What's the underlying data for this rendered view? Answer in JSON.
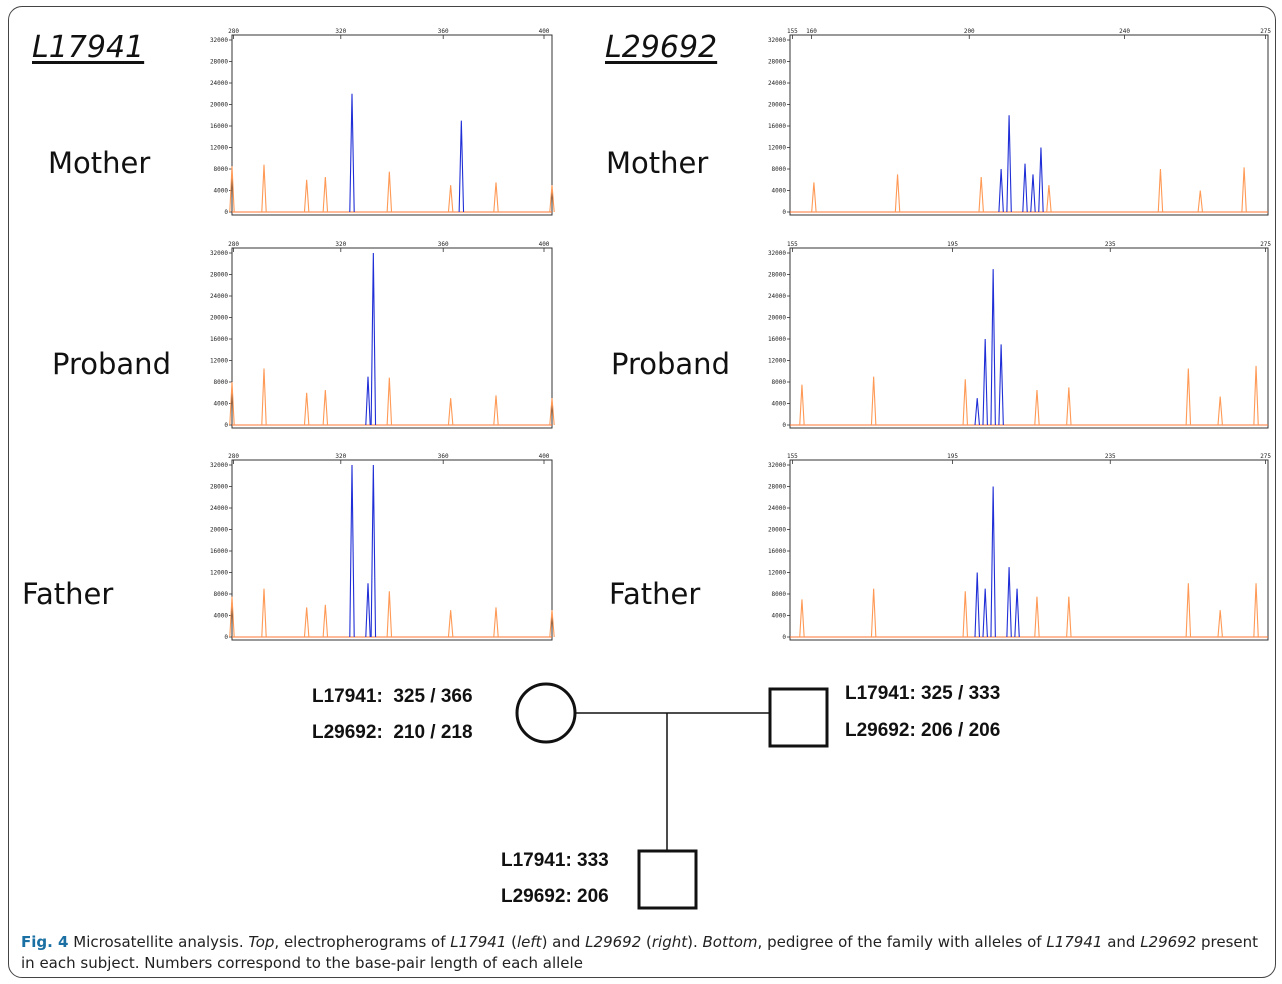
{
  "figure": {
    "caption_label": "Fig. 4",
    "caption_parts": [
      {
        "text": " Microsatellite analysis. ",
        "italic": false
      },
      {
        "text": "Top",
        "italic": true
      },
      {
        "text": ", electropherograms of ",
        "italic": false
      },
      {
        "text": "L17941",
        "italic": true
      },
      {
        "text": " (",
        "italic": false
      },
      {
        "text": "left",
        "italic": true
      },
      {
        "text": ") and ",
        "italic": false
      },
      {
        "text": "L29692",
        "italic": true
      },
      {
        "text": " (",
        "italic": false
      },
      {
        "text": "right",
        "italic": true
      },
      {
        "text": "). ",
        "italic": false
      },
      {
        "text": "Bottom",
        "italic": true
      },
      {
        "text": ", pedigree of the family with alleles of ",
        "italic": false
      },
      {
        "text": "L17941",
        "italic": true
      },
      {
        "text": " and ",
        "italic": false
      },
      {
        "text": "L29692",
        "italic": true
      },
      {
        "text": " present in each subject. Numbers correspond to the base-pair length of each allele",
        "italic": false
      }
    ]
  },
  "markers": {
    "left_title": "L17941",
    "right_title": "L29692"
  },
  "subjects": {
    "left": [
      "Mother",
      "Proband",
      "Father"
    ],
    "right": [
      "Mother",
      "Proband",
      "Father"
    ]
  },
  "chart_data": [
    {
      "type": "line",
      "title": "L17941",
      "subject": "Mother",
      "x_ticks": [
        "280",
        "320",
        "360",
        "400"
      ],
      "xlim": [
        280,
        400
      ],
      "y_ticks": [
        "32000",
        "28000",
        "24000",
        "20000",
        "16000",
        "12000",
        "8000",
        "4000",
        "0"
      ],
      "ylim": [
        0,
        32000
      ],
      "series": [
        {
          "color": "#1f2ed6",
          "peaks": [
            [
              325,
              22000
            ],
            [
              366,
              17000
            ]
          ]
        },
        {
          "color": "#ff9955",
          "peaks": [
            [
              280,
              8500
            ],
            [
              292,
              8800
            ],
            [
              308,
              6000
            ],
            [
              315,
              6500
            ],
            [
              339,
              7500
            ],
            [
              362,
              5000
            ],
            [
              379,
              5500
            ],
            [
              400,
              5000
            ]
          ]
        }
      ]
    },
    {
      "type": "line",
      "title": "L17941",
      "subject": "Proband",
      "x_ticks": [
        "280",
        "320",
        "360",
        "400"
      ],
      "xlim": [
        280,
        400
      ],
      "y_ticks": [
        "32000",
        "28000",
        "24000",
        "20000",
        "16000",
        "12000",
        "8000",
        "4000",
        "0"
      ],
      "ylim": [
        0,
        32000
      ],
      "series": [
        {
          "color": "#1f2ed6",
          "peaks": [
            [
              333,
              32000
            ],
            [
              331,
              9000
            ]
          ]
        },
        {
          "color": "#ff9955",
          "peaks": [
            [
              280,
              8000
            ],
            [
              292,
              10500
            ],
            [
              308,
              6000
            ],
            [
              315,
              6500
            ],
            [
              339,
              8800
            ],
            [
              362,
              5000
            ],
            [
              379,
              5500
            ],
            [
              400,
              5000
            ]
          ]
        }
      ]
    },
    {
      "type": "line",
      "title": "L17941",
      "subject": "Father",
      "x_ticks": [
        "280",
        "320",
        "360",
        "400"
      ],
      "xlim": [
        280,
        400
      ],
      "y_ticks": [
        "32000",
        "28000",
        "24000",
        "20000",
        "16000",
        "12000",
        "8000",
        "4000",
        "0"
      ],
      "ylim": [
        0,
        32000
      ],
      "series": [
        {
          "color": "#1f2ed6",
          "peaks": [
            [
              325,
              32000
            ],
            [
              333,
              32000
            ],
            [
              331,
              10000
            ]
          ]
        },
        {
          "color": "#ff9955",
          "peaks": [
            [
              280,
              7500
            ],
            [
              292,
              9000
            ],
            [
              308,
              5500
            ],
            [
              315,
              6000
            ],
            [
              339,
              8500
            ],
            [
              362,
              5000
            ],
            [
              379,
              5500
            ],
            [
              400,
              5000
            ]
          ]
        }
      ]
    },
    {
      "type": "line",
      "title": "L29692",
      "subject": "Mother",
      "x_ticks": [
        "155",
        "160",
        "200",
        "240",
        "275"
      ],
      "xlim": [
        155,
        275
      ],
      "y_ticks": [
        "32000",
        "28000",
        "24000",
        "20000",
        "16000",
        "12000",
        "8000",
        "4000",
        "0"
      ],
      "ylim": [
        0,
        32000
      ],
      "series": [
        {
          "color": "#1f2ed6",
          "peaks": [
            [
              210,
              18000
            ],
            [
              218,
              12000
            ],
            [
              208,
              8000
            ],
            [
              214,
              9000
            ],
            [
              216,
              7000
            ]
          ]
        },
        {
          "color": "#ff9955",
          "peaks": [
            [
              161,
              5500
            ],
            [
              182,
              7000
            ],
            [
              203,
              6500
            ],
            [
              220,
              5000
            ],
            [
              248,
              8000
            ],
            [
              258,
              4000
            ],
            [
              269,
              8300
            ]
          ]
        }
      ]
    },
    {
      "type": "line",
      "title": "L29692",
      "subject": "Proband",
      "x_ticks": [
        "155",
        "195",
        "235",
        "275"
      ],
      "xlim": [
        155,
        275
      ],
      "y_ticks": [
        "32000",
        "28000",
        "24000",
        "20000",
        "16000",
        "12000",
        "8000",
        "4000",
        "0"
      ],
      "ylim": [
        0,
        32000
      ],
      "series": [
        {
          "color": "#1f2ed6",
          "peaks": [
            [
              206,
              29000
            ],
            [
              204,
              16000
            ],
            [
              208,
              15000
            ],
            [
              202,
              5000
            ]
          ]
        },
        {
          "color": "#ff9955",
          "peaks": [
            [
              158,
              7500
            ],
            [
              176,
              9000
            ],
            [
              199,
              8500
            ],
            [
              217,
              6500
            ],
            [
              225,
              7000
            ],
            [
              255,
              10500
            ],
            [
              263,
              5300
            ],
            [
              272,
              11000
            ]
          ]
        }
      ]
    },
    {
      "type": "line",
      "title": "L29692",
      "subject": "Father",
      "x_ticks": [
        "155",
        "195",
        "235",
        "275"
      ],
      "xlim": [
        155,
        275
      ],
      "y_ticks": [
        "32000",
        "28000",
        "24000",
        "20000",
        "16000",
        "12000",
        "8000",
        "4000",
        "0"
      ],
      "ylim": [
        0,
        32000
      ],
      "series": [
        {
          "color": "#1f2ed6",
          "peaks": [
            [
              206,
              28000
            ],
            [
              202,
              12000
            ],
            [
              210,
              13000
            ],
            [
              204,
              9000
            ],
            [
              212,
              9000
            ]
          ]
        },
        {
          "color": "#ff9955",
          "peaks": [
            [
              158,
              7000
            ],
            [
              176,
              9000
            ],
            [
              199,
              8500
            ],
            [
              217,
              7500
            ],
            [
              225,
              7500
            ],
            [
              255,
              10000
            ],
            [
              263,
              5000
            ],
            [
              272,
              10000
            ]
          ]
        }
      ]
    }
  ],
  "pedigree": {
    "mother": {
      "line1": "L17941:  325 / 366",
      "line2": "L29692:  210 / 218"
    },
    "father": {
      "line1": "L17941: 325 / 333",
      "line2": "L29692: 206 / 206"
    },
    "proband": {
      "line1": "L17941: 333",
      "line2": "L29692: 206"
    }
  }
}
